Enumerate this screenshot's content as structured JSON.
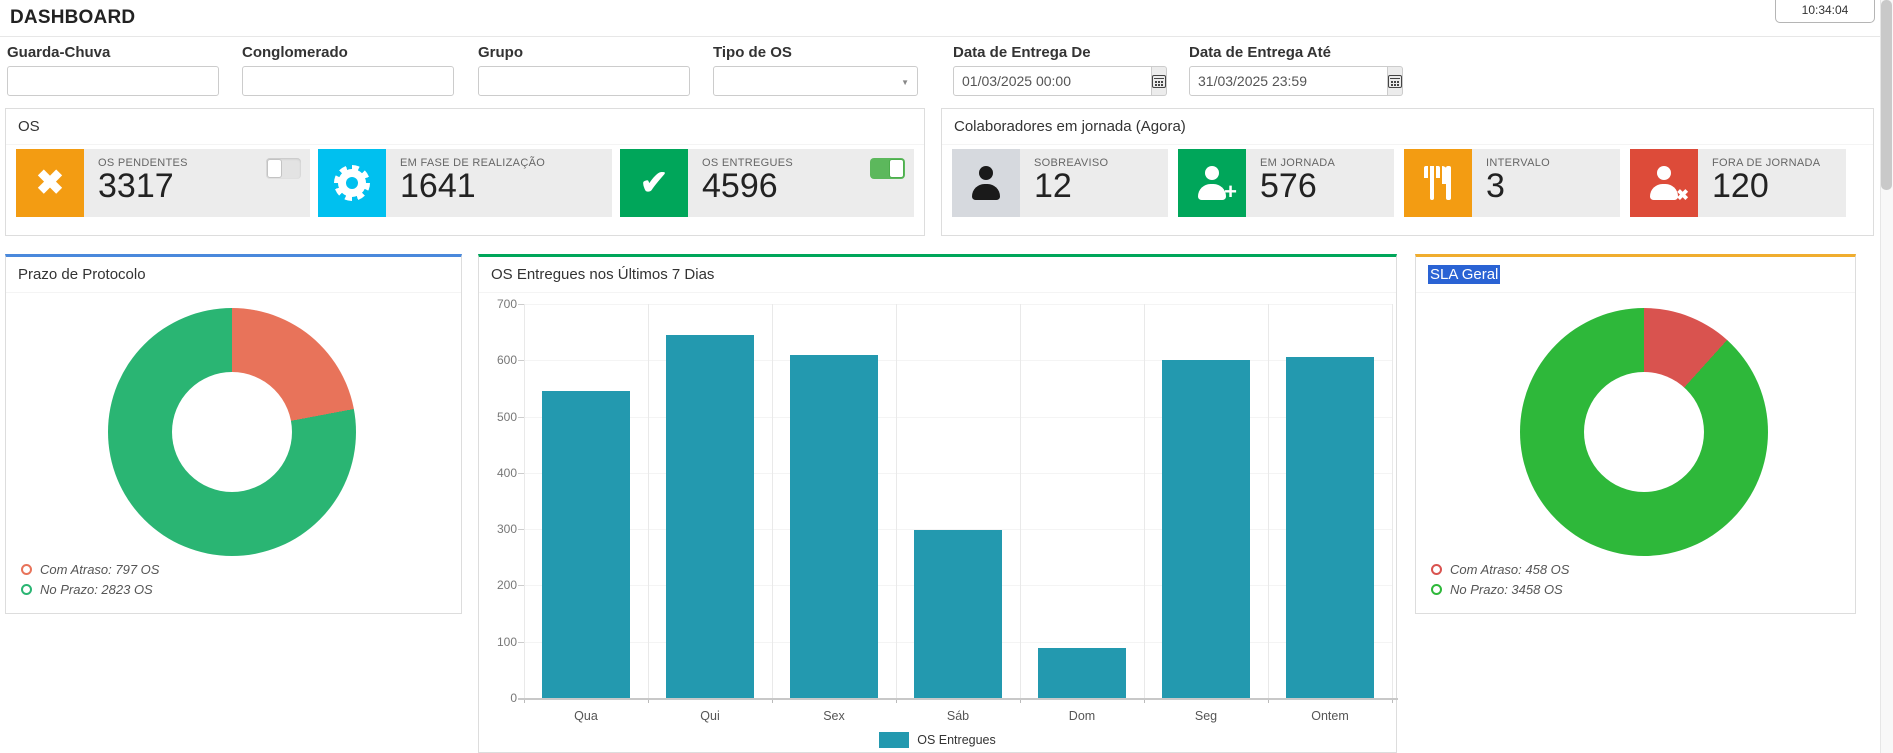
{
  "header": {
    "title": "DASHBOARD",
    "clock": "10:34:04"
  },
  "filters": [
    {
      "name": "guarda-chuva",
      "label": "Guarda-Chuva",
      "type": "text",
      "value": ""
    },
    {
      "name": "conglomerado",
      "label": "Conglomerado",
      "type": "text",
      "value": ""
    },
    {
      "name": "grupo",
      "label": "Grupo",
      "type": "text",
      "value": ""
    },
    {
      "name": "tipo-de-os",
      "label": "Tipo de OS",
      "type": "select",
      "value": ""
    },
    {
      "name": "data-entrega-de",
      "label": "Data de Entrega De",
      "type": "datetime",
      "value": "01/03/2025 00:00"
    },
    {
      "name": "data-entrega-ate",
      "label": "Data de Entrega Até",
      "type": "datetime",
      "value": "31/03/2025 23:59"
    }
  ],
  "os_panel": {
    "title": "OS",
    "cards": [
      {
        "name": "os-pendentes",
        "label": "OS PENDENTES",
        "value": "3317",
        "icon": "x-icon",
        "icon_bg": "#f39c12",
        "toggle": "off"
      },
      {
        "name": "em-realizacao",
        "label": "EM FASE DE REALIZAÇÃO",
        "value": "1641",
        "icon": "gear-icon",
        "icon_bg": "#00c0ef"
      },
      {
        "name": "os-entregues",
        "label": "OS ENTREGUES",
        "value": "4596",
        "icon": "check-icon",
        "icon_bg": "#00a65a",
        "toggle": "on"
      }
    ]
  },
  "collab_panel": {
    "title": "Colaboradores em jornada (Agora)",
    "cards": [
      {
        "name": "sobreaviso",
        "label": "SOBREAVISO",
        "value": "12",
        "icon": "person-icon",
        "icon_bg": "#d6d9de",
        "icon_color": "#1a1a1a"
      },
      {
        "name": "em-jornada",
        "label": "EM JORNADA",
        "value": "576",
        "icon": "person-plus-icon",
        "icon_bg": "#00a65a",
        "icon_color": "#ffffff"
      },
      {
        "name": "intervalo",
        "label": "INTERVALO",
        "value": "3",
        "icon": "utensils-icon",
        "icon_bg": "#f39c12",
        "icon_color": "#ffffff"
      },
      {
        "name": "fora-de-jornada",
        "label": "FORA DE JORNADA",
        "value": "120",
        "icon": "person-x-icon",
        "icon_bg": "#dd4b39",
        "icon_color": "#ffffff"
      }
    ]
  },
  "chart_data": [
    {
      "type": "pie",
      "donut": true,
      "title": "Prazo de Protocolo",
      "accent_color": "#4a89dc",
      "slices": [
        {
          "label": "Com Atraso",
          "value": 797,
          "color": "#e8735a",
          "legend": "Com Atraso: 797 OS"
        },
        {
          "label": "No Prazo",
          "value": 2823,
          "color": "#2ab573",
          "legend": "No Prazo: 2823 OS"
        }
      ],
      "legend_position": "bottom-left"
    },
    {
      "type": "bar",
      "title": "OS Entregues nos Últimos 7 Dias",
      "accent_color": "#00a65a",
      "categories": [
        "Qua",
        "Qui",
        "Sex",
        "Sáb",
        "Dom",
        "Seg",
        "Ontem"
      ],
      "values": [
        545,
        645,
        610,
        298,
        88,
        600,
        605
      ],
      "series_name": "OS Entregues",
      "bar_color": "#2399af",
      "ylim": [
        0,
        700
      ],
      "ytick_step": 100,
      "grid": true,
      "legend_position": "bottom-center"
    },
    {
      "type": "pie",
      "donut": true,
      "title": "SLA Geral",
      "title_selected": true,
      "accent_color": "#f0ad2e",
      "slices": [
        {
          "label": "Com Atraso",
          "value": 458,
          "color": "#d9534f",
          "legend": "Com Atraso: 458 OS"
        },
        {
          "label": "No Prazo",
          "value": 3458,
          "color": "#2eb83a",
          "legend": "No Prazo: 3458 OS"
        }
      ],
      "legend_position": "bottom-left"
    }
  ]
}
